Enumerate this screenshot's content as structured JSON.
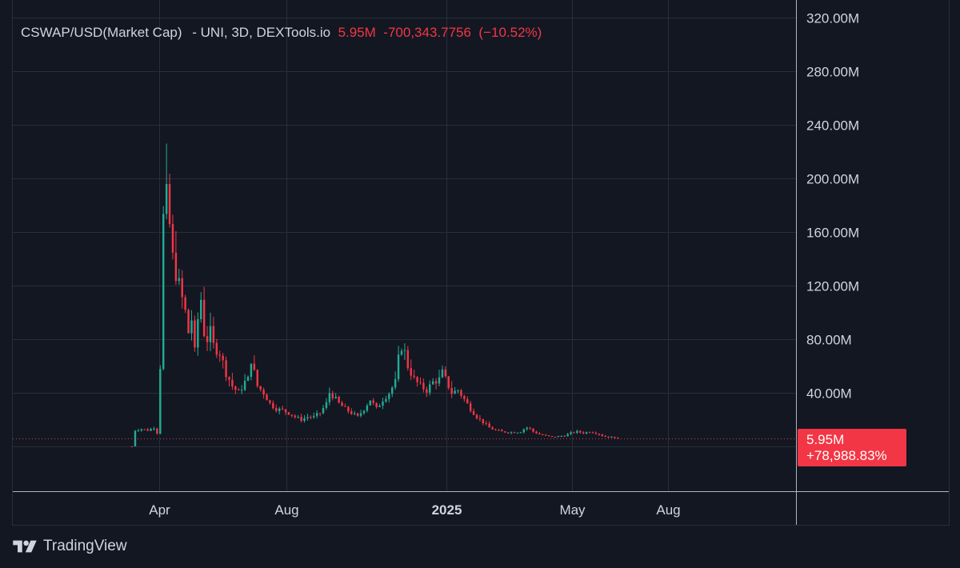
{
  "legend": {
    "symbol": "CSWAP/USD(Market Cap)",
    "meta": "- UNI, 3D, DEXTools.io",
    "last": "5.95M",
    "change": "-700,343.7756",
    "change_pct": "(−10.52%)"
  },
  "price_badge": {
    "value": "5.95M",
    "change": "+78,988.83%"
  },
  "brand": {
    "name": "TradingView",
    "logo_icon": "tradingview-logo-icon"
  },
  "colors": {
    "background": "#131722",
    "grid": "#2a2e39",
    "up": "#22ab94",
    "down": "#f23645",
    "text": "#d1d4dc",
    "axis_line": "#b2b5be"
  },
  "chart_data": {
    "type": "candlestick",
    "title": "CSWAP/USD(Market Cap) - UNI, 3D, DEXTools.io",
    "ylim": [
      0,
      320000000
    ],
    "y_ticks": [
      {
        "value": 40000000,
        "label": "40.00M"
      },
      {
        "value": 80000000,
        "label": "80.00M"
      },
      {
        "value": 120000000,
        "label": "120.00M"
      },
      {
        "value": 160000000,
        "label": "160.00M"
      },
      {
        "value": 200000000,
        "label": "200.00M"
      },
      {
        "value": 240000000,
        "label": "240.00M"
      },
      {
        "value": 280000000,
        "label": "280.00M"
      },
      {
        "value": 320000000,
        "label": "320.00M"
      }
    ],
    "x_ticks": [
      {
        "date": "2024-04-01",
        "label": "Apr",
        "bold": false
      },
      {
        "date": "2024-08-01",
        "label": "Aug",
        "bold": false
      },
      {
        "date": "2025-01-01",
        "label": "2025",
        "bold": true
      },
      {
        "date": "2025-05-01",
        "label": "May",
        "bold": false
      },
      {
        "date": "2025-08-01",
        "label": "Aug",
        "bold": false
      }
    ],
    "x_domain": [
      "2024-02-08",
      "2026-01-01"
    ],
    "last_value": 5950000,
    "series": [
      {
        "interval": "3D",
        "start": "2024-03-06",
        "close_path_M": [
          [
            0,
            0.1
          ],
          [
            1,
            12
          ],
          [
            3,
            13
          ],
          [
            5,
            12
          ],
          [
            7,
            14
          ],
          [
            8,
            10
          ],
          [
            9,
            60
          ],
          [
            10,
            170
          ],
          [
            11,
            185
          ],
          [
            12,
            165
          ],
          [
            13,
            140
          ],
          [
            14,
            130
          ],
          [
            15,
            120
          ],
          [
            16,
            110
          ],
          [
            17,
            100
          ],
          [
            18,
            85
          ],
          [
            19,
            95
          ],
          [
            20,
            70
          ],
          [
            21,
            95
          ],
          [
            22,
            110
          ],
          [
            23,
            85
          ],
          [
            24,
            80
          ],
          [
            25,
            85
          ],
          [
            26,
            75
          ],
          [
            28,
            70
          ],
          [
            30,
            55
          ],
          [
            32,
            45
          ],
          [
            34,
            40
          ],
          [
            36,
            48
          ],
          [
            37,
            50
          ],
          [
            38,
            65
          ],
          [
            40,
            45
          ],
          [
            42,
            40
          ],
          [
            44,
            32
          ],
          [
            46,
            28
          ],
          [
            48,
            27
          ],
          [
            50,
            25
          ],
          [
            52,
            22
          ],
          [
            54,
            20
          ],
          [
            56,
            22
          ],
          [
            58,
            22
          ],
          [
            60,
            25
          ],
          [
            62,
            32
          ],
          [
            63,
            40
          ],
          [
            64,
            38
          ],
          [
            66,
            32
          ],
          [
            68,
            28
          ],
          [
            70,
            25
          ],
          [
            72,
            22
          ],
          [
            74,
            28
          ],
          [
            76,
            35
          ],
          [
            78,
            28
          ],
          [
            80,
            35
          ],
          [
            82,
            40
          ],
          [
            84,
            48
          ],
          [
            85,
            65
          ],
          [
            86,
            75
          ],
          [
            87,
            70
          ],
          [
            88,
            60
          ],
          [
            90,
            50
          ],
          [
            92,
            45
          ],
          [
            94,
            42
          ],
          [
            96,
            48
          ],
          [
            98,
            50
          ],
          [
            99,
            55
          ],
          [
            100,
            50
          ],
          [
            102,
            40
          ],
          [
            104,
            42
          ],
          [
            106,
            35
          ],
          [
            108,
            28
          ],
          [
            110,
            22
          ],
          [
            112,
            18
          ],
          [
            114,
            14
          ],
          [
            116,
            12
          ],
          [
            118,
            11
          ],
          [
            120,
            10.5
          ],
          [
            122,
            10.5
          ],
          [
            124,
            11
          ],
          [
            125,
            13
          ],
          [
            126,
            14
          ],
          [
            127,
            13
          ],
          [
            128,
            11
          ],
          [
            130,
            9
          ],
          [
            132,
            8
          ],
          [
            134,
            7
          ],
          [
            136,
            7.5
          ],
          [
            138,
            8
          ],
          [
            140,
            10
          ],
          [
            142,
            11
          ],
          [
            144,
            10
          ],
          [
            146,
            11
          ],
          [
            148,
            10
          ],
          [
            150,
            8
          ],
          [
            152,
            7
          ],
          [
            154,
            6.65
          ],
          [
            155,
            5.95
          ]
        ]
      }
    ]
  }
}
